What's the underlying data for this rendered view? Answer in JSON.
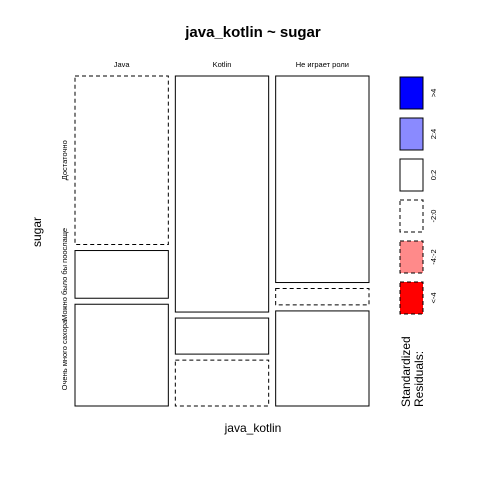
{
  "chart_data": {
    "type": "mosaic",
    "title": "java_kotlin ~ sugar",
    "xlabel": "java_kotlin",
    "ylabel": "sugar",
    "x_categories": [
      "Java",
      "Kotlin",
      "Не играет роли"
    ],
    "y_categories": [
      "Достаточно",
      "Можно было бы поослаще",
      "Очень много сахора"
    ],
    "column_proportions": [
      0.3,
      0.3,
      0.3
    ],
    "cells": [
      {
        "x": "Java",
        "y": "Достаточно",
        "proportion": 0.53,
        "residual_class": "-2:0"
      },
      {
        "x": "Java",
        "y": "Можно было бы поослаще",
        "proportion": 0.15,
        "residual_class": "0:2"
      },
      {
        "x": "Java",
        "y": "Очень много сахора",
        "proportion": 0.32,
        "residual_class": "0:2"
      },
      {
        "x": "Kotlin",
        "y": "Достаточно",
        "proportion": 0.72,
        "residual_class": "0:2"
      },
      {
        "x": "Kotlin",
        "y": "Можно было бы поослаще",
        "proportion": 0.11,
        "residual_class": "0:2"
      },
      {
        "x": "Kotlin",
        "y": "Очень много сахора",
        "proportion": 0.14,
        "residual_class": "-2:0"
      },
      {
        "x": "Не играет роли",
        "y": "Достаточно",
        "proportion": 0.63,
        "residual_class": "0:2"
      },
      {
        "x": "Не играет роли",
        "y": "Можно было бы поослаще",
        "proportion": 0.05,
        "residual_class": "-2:0"
      },
      {
        "x": "Не играет роли",
        "y": "Очень много сахора",
        "proportion": 0.29,
        "residual_class": "0:2"
      }
    ],
    "legend": {
      "title_line1": "Standardized",
      "title_line2": "Residuals:",
      "entries": [
        {
          "label": ">4",
          "color": "#0000ff",
          "dashed": false
        },
        {
          "label": "2:4",
          "color": "#8a8aff",
          "dashed": false
        },
        {
          "label": "0:2",
          "color": "#ffffff",
          "dashed": false
        },
        {
          "label": "-2:0",
          "color": "#ffffff",
          "dashed": true
        },
        {
          "label": "-4:-2",
          "color": "#ff8a8a",
          "dashed": true
        },
        {
          "label": "<-4",
          "color": "#ff0000",
          "dashed": true
        }
      ]
    }
  }
}
